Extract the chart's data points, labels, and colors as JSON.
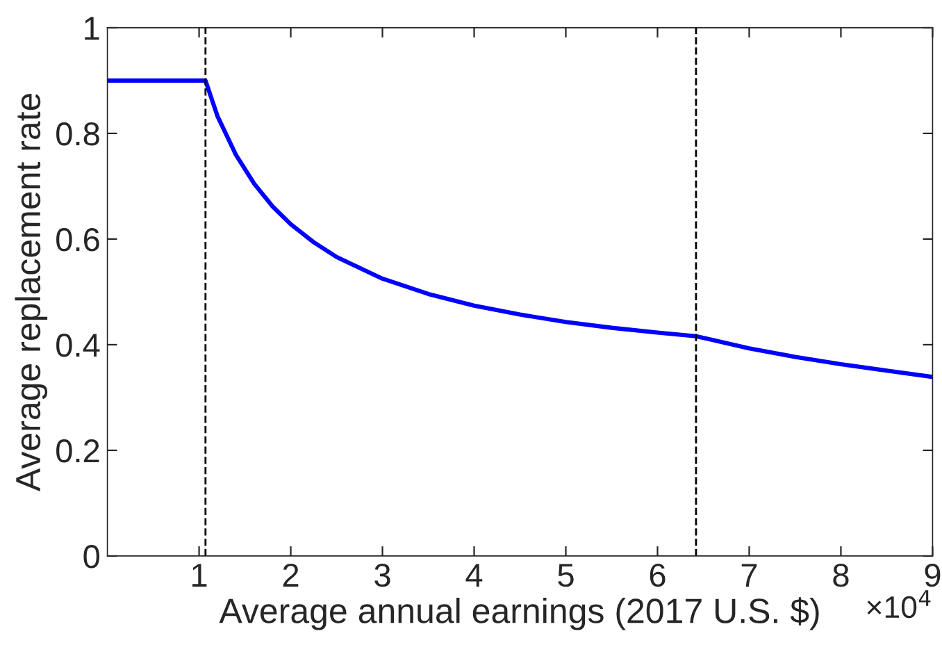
{
  "chart_data": {
    "type": "line",
    "xlabel": "Average annual earnings (2017 U.S. $)",
    "ylabel": "Average replacement rate",
    "x": [
      0,
      1.07,
      1.2,
      1.4,
      1.6,
      1.8,
      2,
      2.25,
      2.5,
      3,
      3.5,
      4,
      4.5,
      5,
      5.5,
      6,
      6.42,
      7,
      7.5,
      8,
      8.5,
      9
    ],
    "series": [
      {
        "color": "#0000ff",
        "values": [
          0.9,
          0.9,
          0.833,
          0.76,
          0.705,
          0.662,
          0.628,
          0.594,
          0.566,
          0.525,
          0.496,
          0.474,
          0.457,
          0.443,
          0.432,
          0.423,
          0.416,
          0.393,
          0.377,
          0.363,
          0.351,
          0.339
        ]
      }
    ],
    "xlim": [
      0,
      9
    ],
    "xticks": [
      1,
      2,
      3,
      4,
      5,
      6,
      7,
      8,
      9
    ],
    "ylim": [
      0,
      1
    ],
    "yticks": [
      0,
      0.2,
      0.4,
      0.6,
      0.8,
      1
    ],
    "ref_lines": [
      {
        "axis": "x",
        "value": 1.07,
        "color": "#000000",
        "line_style": "dashed"
      },
      {
        "axis": "x",
        "value": 6.42,
        "color": "#000000",
        "line_style": "dashed"
      }
    ],
    "annotations": [
      "×10$^{4}$"
    ],
    "grid": false,
    "legend": false,
    "marker": "none",
    "line_style": "solid"
  }
}
